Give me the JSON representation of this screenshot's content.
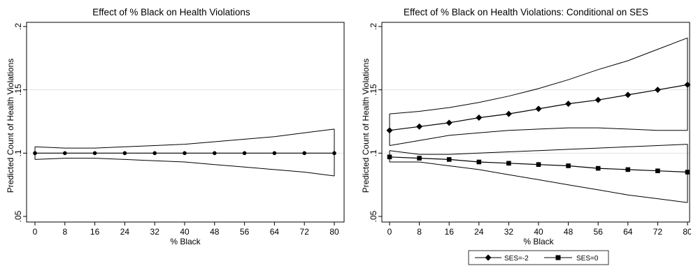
{
  "chart_data": [
    {
      "type": "line",
      "title": "Effect of % Black on Health Violations",
      "xlabel": "% Black",
      "ylabel": "Predicted Count of Health Violations",
      "x": [
        0,
        8,
        16,
        24,
        32,
        40,
        48,
        56,
        64,
        72,
        80
      ],
      "xlim": [
        0,
        80
      ],
      "ylim": [
        0.05,
        0.2
      ],
      "yticks": [
        0.05,
        0.1,
        0.15,
        0.2
      ],
      "ytick_labels": [
        ".05",
        ".1",
        ".15",
        ".2"
      ],
      "grid": "horizontal",
      "legend": "none",
      "series": [
        {
          "marker": "circle",
          "values": [
            0.1,
            0.1,
            0.1,
            0.1,
            0.1,
            0.1,
            0.1,
            0.1,
            0.1,
            0.1,
            0.1
          ],
          "ci_upper": [
            0.105,
            0.104,
            0.104,
            0.105,
            0.106,
            0.107,
            0.109,
            0.111,
            0.113,
            0.116,
            0.119
          ],
          "ci_lower": [
            0.095,
            0.096,
            0.096,
            0.095,
            0.094,
            0.093,
            0.091,
            0.089,
            0.087,
            0.085,
            0.082
          ]
        }
      ]
    },
    {
      "type": "line",
      "title": "Effect of % Black on Health Violations: Conditional on SES",
      "xlabel": "% Black",
      "ylabel": "Predicted Count of Health Violations",
      "x": [
        0,
        8,
        16,
        24,
        32,
        40,
        48,
        56,
        64,
        72,
        80
      ],
      "xlim": [
        0,
        80
      ],
      "ylim": [
        0.05,
        0.2
      ],
      "yticks": [
        0.05,
        0.1,
        0.15,
        0.2
      ],
      "ytick_labels": [
        ".05",
        ".1",
        ".15",
        ".2"
      ],
      "grid": "horizontal",
      "legend": "bottom",
      "series": [
        {
          "name": "SES=-2",
          "marker": "diamond",
          "values": [
            0.118,
            0.121,
            0.124,
            0.128,
            0.131,
            0.135,
            0.139,
            0.142,
            0.146,
            0.15,
            0.154
          ],
          "ci_upper": [
            0.131,
            0.133,
            0.136,
            0.14,
            0.145,
            0.151,
            0.158,
            0.166,
            0.173,
            0.182,
            0.191
          ],
          "ci_lower": [
            0.106,
            0.11,
            0.114,
            0.116,
            0.118,
            0.119,
            0.12,
            0.12,
            0.119,
            0.118,
            0.118
          ]
        },
        {
          "name": "SES=0",
          "marker": "square",
          "values": [
            0.097,
            0.096,
            0.095,
            0.093,
            0.092,
            0.091,
            0.09,
            0.088,
            0.087,
            0.086,
            0.085
          ],
          "ci_upper": [
            0.102,
            0.099,
            0.099,
            0.1,
            0.101,
            0.102,
            0.103,
            0.104,
            0.105,
            0.106,
            0.107
          ],
          "ci_lower": [
            0.093,
            0.093,
            0.09,
            0.087,
            0.083,
            0.079,
            0.075,
            0.071,
            0.067,
            0.064,
            0.061
          ]
        }
      ]
    }
  ]
}
